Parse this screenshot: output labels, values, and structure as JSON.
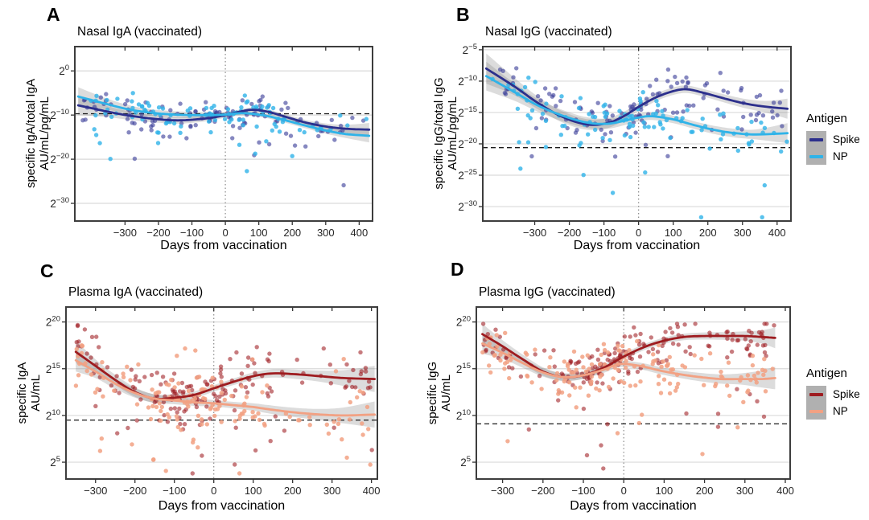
{
  "figure": {
    "background": "#ffffff",
    "band_color": "rgba(128,128,128,0.28)",
    "grid_color": "#d9d9d9",
    "border_color": "#3d3d3d",
    "hline_color": "#1a1a1a",
    "vline_color": "#8a8a8a"
  },
  "legends": [
    {
      "title": "Antigen",
      "entries": [
        {
          "label": "Spike",
          "color": "#2c2f8c"
        },
        {
          "label": "NP",
          "color": "#2fb3e8"
        }
      ]
    },
    {
      "title": "Antigen",
      "entries": [
        {
          "label": "Spike",
          "color": "#9e1c20"
        },
        {
          "label": "NP",
          "color": "#f2a183"
        }
      ]
    }
  ],
  "chart_data": [
    {
      "type": "scatter",
      "panel_label": "A",
      "title": "Nasal IgA (vaccinated)",
      "ylabel_line1": "specific IgA/total IgA",
      "ylabel_line2": "AU/mL/pg/mL",
      "xlabel": "Days from vaccination",
      "x_ticks": [
        -300,
        -200,
        -100,
        0,
        100,
        200,
        300,
        400
      ],
      "y_ticks_exp": [
        0,
        -10,
        -20,
        -30
      ],
      "xlim": [
        -450,
        440
      ],
      "ylim_exp": [
        5.5,
        -34
      ],
      "hline_exp": -9.7,
      "vline_x": 0,
      "x_mixture": [
        [
          -430,
          -300,
          0.12
        ],
        [
          -300,
          -180,
          0.16
        ],
        [
          -180,
          -60,
          0.16
        ],
        [
          -60,
          20,
          0.15
        ],
        [
          20,
          160,
          0.22
        ],
        [
          160,
          300,
          0.11
        ],
        [
          300,
          430,
          0.08
        ]
      ],
      "series": [
        {
          "name": "Spike",
          "line_color": "#2c2f8c",
          "point_color": "#3c3f99",
          "point_opacity": 0.62,
          "curve": [
            [
              -440,
              -7.8,
              2.2
            ],
            [
              -360,
              -9.1,
              1.3
            ],
            [
              -290,
              -10.1,
              0.95
            ],
            [
              -220,
              -10.8,
              0.8
            ],
            [
              -150,
              -11.2,
              0.75
            ],
            [
              -90,
              -11.0,
              0.7
            ],
            [
              -40,
              -10.6,
              0.6
            ],
            [
              0,
              -10.0,
              0.55
            ],
            [
              40,
              -9.3,
              0.5
            ],
            [
              80,
              -8.8,
              0.5
            ],
            [
              130,
              -9.3,
              0.5
            ],
            [
              180,
              -10.4,
              0.55
            ],
            [
              240,
              -11.7,
              0.6
            ],
            [
              300,
              -12.6,
              0.7
            ],
            [
              360,
              -13.1,
              0.9
            ],
            [
              430,
              -13.3,
              1.5
            ]
          ],
          "scatter": {
            "n": 125,
            "sd": 2.6,
            "seed": 11,
            "outlier_p": 0.07,
            "outlier_depth": 10,
            "ymax": 2.6
          }
        },
        {
          "name": "NP",
          "line_color": "#2fb3e8",
          "point_color": "#2fb3e8",
          "point_opacity": 0.8,
          "curve": [
            [
              -440,
              -5.8,
              2.1
            ],
            [
              -360,
              -7.4,
              1.3
            ],
            [
              -290,
              -8.7,
              0.95
            ],
            [
              -220,
              -9.5,
              0.8
            ],
            [
              -150,
              -9.9,
              0.75
            ],
            [
              -90,
              -10.0,
              0.7
            ],
            [
              -40,
              -10.0,
              0.6
            ],
            [
              0,
              -9.9,
              0.55
            ],
            [
              40,
              -9.6,
              0.5
            ],
            [
              80,
              -9.7,
              0.5
            ],
            [
              130,
              -10.3,
              0.5
            ],
            [
              180,
              -11.2,
              0.55
            ],
            [
              240,
              -12.4,
              0.6
            ],
            [
              300,
              -13.5,
              0.7
            ],
            [
              360,
              -14.3,
              0.9
            ],
            [
              430,
              -14.7,
              1.5
            ]
          ],
          "scatter": {
            "n": 105,
            "sd": 2.6,
            "seed": 22,
            "outlier_p": 0.07,
            "outlier_depth": 12,
            "ymax": 4.6
          }
        }
      ]
    },
    {
      "type": "scatter",
      "panel_label": "B",
      "title": "Nasal IgG (vaccinated)",
      "ylabel_line1": "specific IgG/total IgG",
      "ylabel_line2": "AU/mL/pg/mL",
      "xlabel": "Days from vaccination",
      "x_ticks": [
        -300,
        -200,
        -100,
        0,
        100,
        200,
        300,
        400
      ],
      "y_ticks_exp": [
        -5,
        -10,
        -15,
        -20,
        -25,
        -30
      ],
      "xlim": [
        -450,
        440
      ],
      "ylim_exp": [
        -4.5,
        -32.3
      ],
      "hline_exp": -20.6,
      "vline_x": 0,
      "x_mixture": [
        [
          -430,
          -300,
          0.12
        ],
        [
          -300,
          -180,
          0.16
        ],
        [
          -180,
          -60,
          0.16
        ],
        [
          -60,
          20,
          0.15
        ],
        [
          20,
          160,
          0.22
        ],
        [
          160,
          300,
          0.11
        ],
        [
          300,
          430,
          0.08
        ]
      ],
      "series": [
        {
          "name": "Spike",
          "line_color": "#2c2f8c",
          "point_color": "#3c3f99",
          "point_opacity": 0.62,
          "curve": [
            [
              -440,
              -8.0,
              2.4
            ],
            [
              -360,
              -10.8,
              1.4
            ],
            [
              -290,
              -13.5,
              1.0
            ],
            [
              -220,
              -15.7,
              0.9
            ],
            [
              -150,
              -16.9,
              0.85
            ],
            [
              -90,
              -16.7,
              0.8
            ],
            [
              -40,
              -15.5,
              0.7
            ],
            [
              0,
              -14.1,
              0.65
            ],
            [
              50,
              -12.6,
              0.6
            ],
            [
              100,
              -11.6,
              0.6
            ],
            [
              140,
              -11.3,
              0.6
            ],
            [
              190,
              -11.9,
              0.6
            ],
            [
              250,
              -12.8,
              0.65
            ],
            [
              310,
              -13.6,
              0.75
            ],
            [
              370,
              -14.1,
              0.95
            ],
            [
              430,
              -14.4,
              1.6
            ]
          ],
          "scatter": {
            "n": 125,
            "sd": 2.4,
            "seed": 33,
            "outlier_p": 0.08,
            "outlier_depth": 9,
            "ymax": -7.2
          }
        },
        {
          "name": "NP",
          "line_color": "#2fb3e8",
          "point_color": "#2fb3e8",
          "point_opacity": 0.8,
          "curve": [
            [
              -440,
              -9.2,
              2.3
            ],
            [
              -360,
              -11.7,
              1.4
            ],
            [
              -290,
              -13.9,
              1.0
            ],
            [
              -220,
              -15.5,
              0.9
            ],
            [
              -150,
              -16.6,
              0.85
            ],
            [
              -90,
              -16.8,
              0.8
            ],
            [
              -40,
              -16.3,
              0.7
            ],
            [
              0,
              -15.8,
              0.65
            ],
            [
              40,
              -15.6,
              0.6
            ],
            [
              100,
              -16.1,
              0.6
            ],
            [
              160,
              -17.0,
              0.6
            ],
            [
              220,
              -17.8,
              0.65
            ],
            [
              280,
              -18.3,
              0.7
            ],
            [
              340,
              -18.5,
              0.8
            ],
            [
              430,
              -18.3,
              1.6
            ]
          ],
          "scatter": {
            "n": 115,
            "sd": 2.4,
            "seed": 44,
            "outlier_p": 0.09,
            "outlier_depth": 10,
            "ymax": -7.8
          }
        }
      ]
    },
    {
      "type": "scatter",
      "panel_label": "C",
      "title": "Plasma IgA (vaccinated)",
      "ylabel_line1": "specific IgA",
      "ylabel_line2": "AU/mL",
      "xlabel": "Days from vaccination",
      "x_ticks": [
        -300,
        -200,
        -100,
        0,
        100,
        200,
        300,
        400
      ],
      "y_ticks_exp": [
        20,
        15,
        10,
        5
      ],
      "xlim": [
        -375,
        415
      ],
      "ylim_exp": [
        21.6,
        3.2
      ],
      "hline_exp": 9.5,
      "vline_x": 0,
      "x_mixture": [
        [
          -350,
          -280,
          0.09
        ],
        [
          -280,
          -160,
          0.08
        ],
        [
          -160,
          -60,
          0.22
        ],
        [
          -60,
          20,
          0.2
        ],
        [
          20,
          160,
          0.19
        ],
        [
          160,
          300,
          0.12
        ],
        [
          300,
          405,
          0.1
        ]
      ],
      "series": [
        {
          "name": "Spike",
          "line_color": "#9e1c20",
          "point_color": "#9e1c20",
          "point_opacity": 0.58,
          "curve": [
            [
              -350,
              16.8,
              1.2
            ],
            [
              -300,
              15.3,
              0.7
            ],
            [
              -250,
              13.8,
              0.55
            ],
            [
              -200,
              12.5,
              0.5
            ],
            [
              -150,
              11.8,
              0.45
            ],
            [
              -100,
              11.9,
              0.4
            ],
            [
              -50,
              12.2,
              0.38
            ],
            [
              0,
              12.9,
              0.35
            ],
            [
              50,
              13.6,
              0.35
            ],
            [
              100,
              14.2,
              0.4
            ],
            [
              150,
              14.5,
              0.45
            ],
            [
              210,
              14.4,
              0.5
            ],
            [
              270,
              14.2,
              0.6
            ],
            [
              330,
              14.0,
              0.85
            ],
            [
              408,
              13.9,
              1.4
            ]
          ],
          "scatter": {
            "n": 175,
            "sd": 2.0,
            "seed": 55,
            "outlier_p": 0.07,
            "outlier_depth": 6,
            "ymax": 20.3,
            "outlier_up_p": 0.02,
            "outlier_up_depth": 3
          }
        },
        {
          "name": "NP",
          "line_color": "#f2a183",
          "point_color": "#f2a183",
          "point_opacity": 0.85,
          "curve": [
            [
              -350,
              15.9,
              1.2
            ],
            [
              -300,
              14.7,
              0.7
            ],
            [
              -250,
              13.4,
              0.55
            ],
            [
              -200,
              12.4,
              0.5
            ],
            [
              -150,
              11.8,
              0.45
            ],
            [
              -100,
              11.6,
              0.4
            ],
            [
              -50,
              11.4,
              0.38
            ],
            [
              0,
              11.3,
              0.35
            ],
            [
              50,
              11.1,
              0.35
            ],
            [
              100,
              10.9,
              0.4
            ],
            [
              150,
              10.6,
              0.45
            ],
            [
              210,
              10.3,
              0.5
            ],
            [
              270,
              10.1,
              0.6
            ],
            [
              330,
              10.0,
              0.85
            ],
            [
              408,
              10.1,
              1.4
            ]
          ],
          "scatter": {
            "n": 150,
            "sd": 1.9,
            "seed": 66,
            "outlier_p": 0.08,
            "outlier_depth": 6,
            "ymax": 19.3,
            "outlier_up_p": 0.03,
            "outlier_up_depth": 4
          }
        }
      ]
    },
    {
      "type": "scatter",
      "panel_label": "D",
      "title": "Plasma IgG (vaccinated)",
      "ylabel_line1": "specific IgG",
      "ylabel_line2": "AU/mL",
      "xlabel": "Days from vaccination",
      "x_ticks": [
        -300,
        -200,
        -100,
        0,
        100,
        200,
        300,
        400
      ],
      "y_ticks_exp": [
        20,
        15,
        10,
        5
      ],
      "xlim": [
        -365,
        412
      ],
      "ylim_exp": [
        21.6,
        3.2
      ],
      "hline_exp": 9.1,
      "vline_x": 0,
      "x_mixture": [
        [
          -350,
          -280,
          0.09
        ],
        [
          -280,
          -160,
          0.08
        ],
        [
          -160,
          -60,
          0.22
        ],
        [
          -60,
          20,
          0.2
        ],
        [
          20,
          160,
          0.19
        ],
        [
          160,
          300,
          0.12
        ],
        [
          300,
          373,
          0.1
        ]
      ],
      "series": [
        {
          "name": "Spike",
          "line_color": "#9e1c20",
          "point_color": "#9e1c20",
          "point_opacity": 0.58,
          "curve": [
            [
              -350,
              18.7,
              1.1
            ],
            [
              -300,
              17.4,
              0.65
            ],
            [
              -250,
              16.0,
              0.5
            ],
            [
              -200,
              14.7,
              0.45
            ],
            [
              -150,
              14.1,
              0.4
            ],
            [
              -100,
              14.3,
              0.38
            ],
            [
              -50,
              15.1,
              0.35
            ],
            [
              0,
              16.3,
              0.33
            ],
            [
              50,
              17.3,
              0.33
            ],
            [
              100,
              18.0,
              0.33
            ],
            [
              150,
              18.4,
              0.35
            ],
            [
              200,
              18.5,
              0.38
            ],
            [
              250,
              18.5,
              0.42
            ],
            [
              300,
              18.5,
              0.5
            ],
            [
              340,
              18.4,
              0.7
            ],
            [
              375,
              18.3,
              1.1
            ]
          ],
          "scatter": {
            "n": 185,
            "sd": 1.6,
            "seed": 77,
            "outlier_p": 0.06,
            "outlier_depth": 9,
            "ymax": 19.8
          }
        },
        {
          "name": "NP",
          "line_color": "#f2a183",
          "point_color": "#f2a183",
          "point_opacity": 0.85,
          "curve": [
            [
              -350,
              17.7,
              1.1
            ],
            [
              -300,
              16.7,
              0.65
            ],
            [
              -250,
              15.6,
              0.5
            ],
            [
              -200,
              14.6,
              0.45
            ],
            [
              -150,
              14.1,
              0.4
            ],
            [
              -100,
              14.3,
              0.38
            ],
            [
              -50,
              14.9,
              0.35
            ],
            [
              -10,
              15.5,
              0.33
            ],
            [
              40,
              15.3,
              0.35
            ],
            [
              90,
              14.8,
              0.38
            ],
            [
              140,
              14.4,
              0.4
            ],
            [
              190,
              14.1,
              0.45
            ],
            [
              240,
              13.9,
              0.5
            ],
            [
              290,
              13.9,
              0.6
            ],
            [
              340,
              13.9,
              0.9
            ],
            [
              375,
              14.0,
              1.2
            ]
          ],
          "scatter": {
            "n": 155,
            "sd": 1.7,
            "seed": 88,
            "outlier_p": 0.08,
            "outlier_depth": 8,
            "ymax": 19.4
          }
        }
      ]
    }
  ]
}
